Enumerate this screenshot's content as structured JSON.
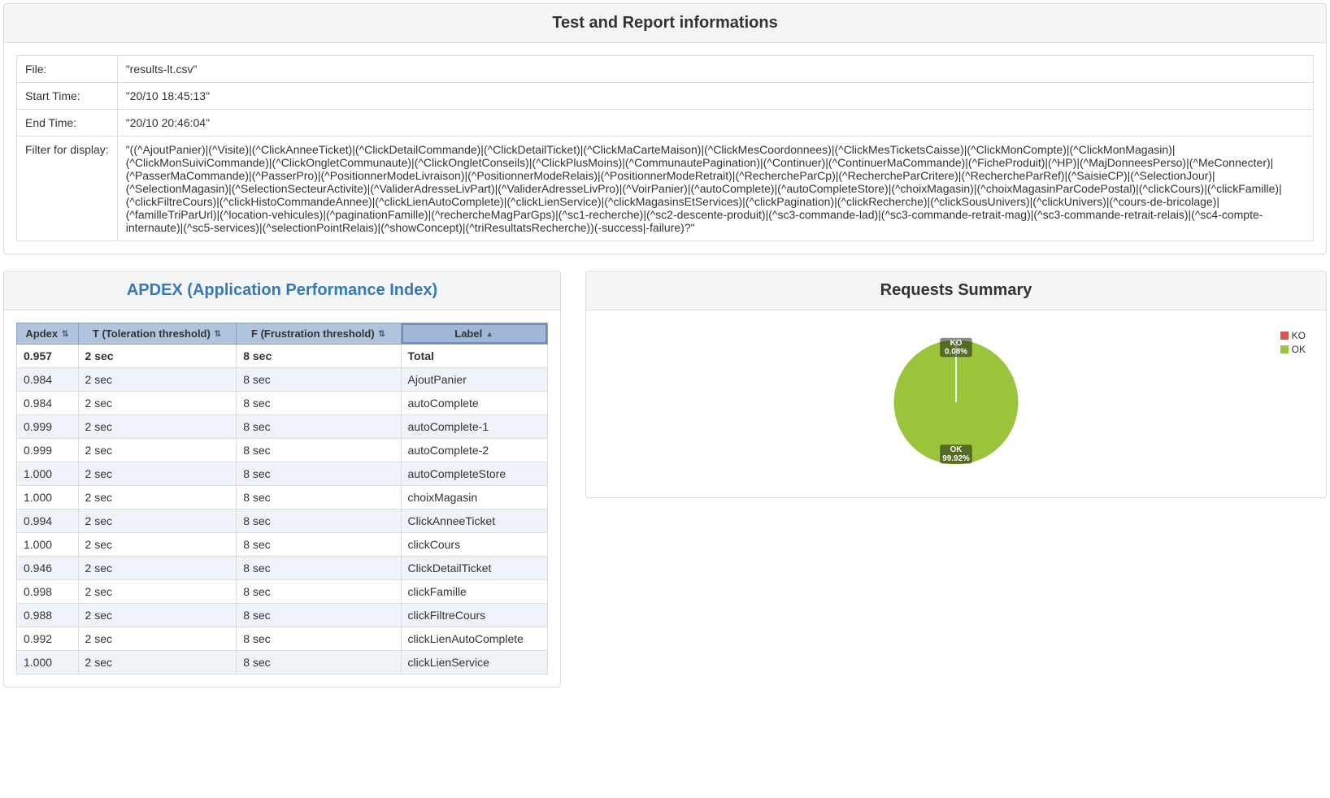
{
  "top_panel": {
    "title": "Test and Report informations",
    "rows": [
      {
        "key": "File:",
        "value": "\"results-lt.csv\""
      },
      {
        "key": "Start Time:",
        "value": "\"20/10 18:45:13\""
      },
      {
        "key": "End Time:",
        "value": "\"20/10 20:46:04\""
      },
      {
        "key": "Filter for display:",
        "value": "\"((^AjoutPanier)|(^Visite)|(^ClickAnneeTicket)|(^ClickDetailCommande)|(^ClickDetailTicket)|(^ClickMaCarteMaison)|(^ClickMesCoordonnees)|(^ClickMesTicketsCaisse)|(^ClickMonCompte)|(^ClickMonMagasin)|(^ClickMonSuiviCommande)|(^ClickOngletCommunaute)|(^ClickOngletConseils)|(^ClickPlusMoins)|(^CommunautePagination)|(^Continuer)|(^ContinuerMaCommande)|(^FicheProduit)|(^HP)|(^MajDonneesPerso)|(^MeConnecter)|(^PasserMaCommande)|(^PasserPro)|(^PositionnerModeLivraison)|(^PositionnerModeRelais)|(^PositionnerModeRetrait)|(^RechercheParCp)|(^RechercheParCritere)|(^RechercheParRef)|(^SaisieCP)|(^SelectionJour)|(^SelectionMagasin)|(^SelectionSecteurActivite)|(^ValiderAdresseLivPart)|(^ValiderAdresseLivPro)|(^VoirPanier)|(^autoComplete)|(^autoCompleteStore)|(^choixMagasin)|(^choixMagasinParCodePostal)|(^clickCours)|(^clickFamille)|(^clickFiltreCours)|(^clickHistoCommandeAnnee)|(^clickLienAutoComplete)|(^clickLienService)|(^clickMagasinsEtServices)|(^clickPagination)|(^clickRecherche)|(^clickSousUnivers)|(^clickUnivers)|(^cours-de-bricolage)|(^familleTriParUrl)|(^location-vehicules)|(^paginationFamille)|(^rechercheMagParGps)|(^sc1-recherche)|(^sc2-descente-produit)|(^sc3-commande-lad)|(^sc3-commande-retrait-mag)|(^sc3-commande-retrait-relais)|(^sc4-compte-internaute)|(^sc5-services)|(^selectionPointRelais)|(^showConcept)|(^triResultatsRecherche))(-success|-failure)?\""
      }
    ]
  },
  "apdex_panel": {
    "title": "APDEX (Application Performance Index)",
    "columns": [
      {
        "label": "Apdex",
        "sortable": true,
        "sorted": false
      },
      {
        "label": "T (Toleration threshold)",
        "sortable": true,
        "sorted": false
      },
      {
        "label": "F (Frustration threshold)",
        "sortable": true,
        "sorted": false
      },
      {
        "label": "Label",
        "sortable": true,
        "sorted": true
      }
    ],
    "header_bg": "#b0c4de",
    "header_border": "#88a2c6",
    "stripe_color": "#eef3fa",
    "rows": [
      {
        "apdex": "0.957",
        "t": "2 sec",
        "f": "8 sec",
        "label": "Total",
        "total": true
      },
      {
        "apdex": "0.984",
        "t": "2 sec",
        "f": "8 sec",
        "label": "AjoutPanier"
      },
      {
        "apdex": "0.984",
        "t": "2 sec",
        "f": "8 sec",
        "label": "autoComplete"
      },
      {
        "apdex": "0.999",
        "t": "2 sec",
        "f": "8 sec",
        "label": "autoComplete-1"
      },
      {
        "apdex": "0.999",
        "t": "2 sec",
        "f": "8 sec",
        "label": "autoComplete-2"
      },
      {
        "apdex": "1.000",
        "t": "2 sec",
        "f": "8 sec",
        "label": "autoCompleteStore"
      },
      {
        "apdex": "1.000",
        "t": "2 sec",
        "f": "8 sec",
        "label": "choixMagasin"
      },
      {
        "apdex": "0.994",
        "t": "2 sec",
        "f": "8 sec",
        "label": "ClickAnneeTicket"
      },
      {
        "apdex": "1.000",
        "t": "2 sec",
        "f": "8 sec",
        "label": "clickCours"
      },
      {
        "apdex": "0.946",
        "t": "2 sec",
        "f": "8 sec",
        "label": "ClickDetailTicket"
      },
      {
        "apdex": "0.998",
        "t": "2 sec",
        "f": "8 sec",
        "label": "clickFamille"
      },
      {
        "apdex": "0.988",
        "t": "2 sec",
        "f": "8 sec",
        "label": "clickFiltreCours"
      },
      {
        "apdex": "0.992",
        "t": "2 sec",
        "f": "8 sec",
        "label": "clickLienAutoComplete"
      },
      {
        "apdex": "1.000",
        "t": "2 sec",
        "f": "8 sec",
        "label": "clickLienService"
      }
    ]
  },
  "requests_panel": {
    "title": "Requests Summary",
    "type": "pie",
    "slices": [
      {
        "name": "KO",
        "percent": 0.08,
        "label_line1": "KO",
        "label_line2": "0.08%",
        "color": "#d9534f"
      },
      {
        "name": "OK",
        "percent": 99.92,
        "label_line1": "OK",
        "label_line2": "99.92%",
        "color": "#9ac43c"
      }
    ],
    "legend": [
      {
        "name": "KO",
        "color": "#d9534f"
      },
      {
        "name": "OK",
        "color": "#9ac43c"
      }
    ],
    "background": "#ffffff"
  }
}
